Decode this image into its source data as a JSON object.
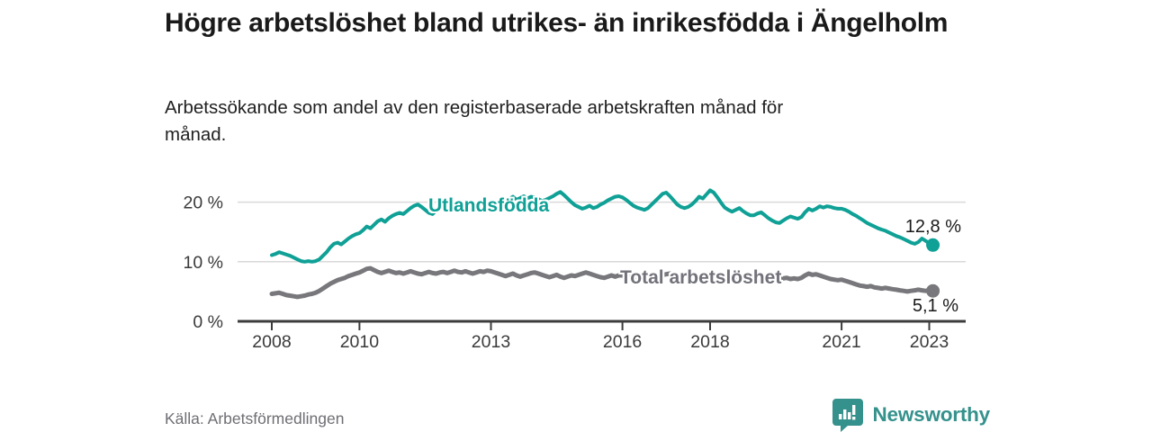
{
  "header": {
    "title": "Högre arbetslöshet bland utrikes- än inrikesfödda i Ängelholm",
    "subtitle": "Arbetssökande som andel av den registerbaserade arbetskraften månad för månad."
  },
  "footer": {
    "source": "Källa: Arbetsförmedlingen",
    "brand": "Newsworthy"
  },
  "colors": {
    "accent_teal": "#0fa096",
    "line_gray": "#78787c",
    "grid": "#d9d9d9",
    "axis": "#3c3c3c",
    "text_dark": "#1a1a1a",
    "brand_teal": "#35918c"
  },
  "chart_data": {
    "type": "line",
    "title": "Högre arbetslöshet bland utrikes- än inrikesfödda i Ängelholm",
    "subtitle": "Arbetssökande som andel av den registerbaserade arbetskraften månad för månad.",
    "x_start_year": 2008,
    "x_end_label_year": 2023,
    "x_step_months": 1,
    "ylim": [
      0,
      23
    ],
    "grid": "horizontal",
    "legend_position": "inline-labels",
    "yticks": [
      {
        "value": 0,
        "label": "0 %"
      },
      {
        "value": 10,
        "label": "10 %"
      },
      {
        "value": 20,
        "label": "20 %"
      }
    ],
    "xticks": [
      {
        "year": 2008,
        "label": "2008"
      },
      {
        "year": 2010,
        "label": "2010"
      },
      {
        "year": 2013,
        "label": "2013"
      },
      {
        "year": 2016,
        "label": "2016"
      },
      {
        "year": 2018,
        "label": "2018"
      },
      {
        "year": 2021,
        "label": "2021"
      },
      {
        "year": 2023,
        "label": "2023"
      }
    ],
    "series": [
      {
        "name": "Utlandsfödda",
        "color": "#0fa096",
        "stroke_width": 4,
        "end_label": "12,8 %",
        "end_value": 12.8,
        "values": [
          11.1,
          11.3,
          11.6,
          11.4,
          11.2,
          11.0,
          10.7,
          10.4,
          10.1,
          10.0,
          10.1,
          10.0,
          10.1,
          10.4,
          11.0,
          11.6,
          12.4,
          13.0,
          13.2,
          12.9,
          13.4,
          13.9,
          14.3,
          14.6,
          14.8,
          15.3,
          15.9,
          15.6,
          16.2,
          16.8,
          17.1,
          16.7,
          17.3,
          17.7,
          18.0,
          18.2,
          18.0,
          18.5,
          19.0,
          19.4,
          19.6,
          19.2,
          18.7,
          18.2,
          18.0,
          18.6,
          19.3,
          19.8,
          20.0,
          19.6,
          19.0,
          18.6,
          18.8,
          19.2,
          19.0,
          18.8,
          18.6,
          18.8,
          18.9,
          18.7,
          18.7,
          19.0,
          19.4,
          19.8,
          20.2,
          20.5,
          20.9,
          20.4,
          20.7,
          21.0,
          20.6,
          20.9,
          20.8,
          20.5,
          20.2,
          20.4,
          20.7,
          21.0,
          21.4,
          21.7,
          21.2,
          20.6,
          20.0,
          19.5,
          19.2,
          18.9,
          19.1,
          19.4,
          19.0,
          19.2,
          19.6,
          19.9,
          20.3,
          20.6,
          20.9,
          21.0,
          20.8,
          20.4,
          19.9,
          19.4,
          19.1,
          18.9,
          18.7,
          19.0,
          19.6,
          20.2,
          20.8,
          21.4,
          21.6,
          21.0,
          20.3,
          19.6,
          19.2,
          19.0,
          19.2,
          19.6,
          20.2,
          20.9,
          20.6,
          21.3,
          22.0,
          21.6,
          20.8,
          19.9,
          19.1,
          18.7,
          18.4,
          18.7,
          19.0,
          18.5,
          18.1,
          17.8,
          17.8,
          18.1,
          18.3,
          17.8,
          17.3,
          16.9,
          16.6,
          16.5,
          16.9,
          17.3,
          17.6,
          17.4,
          17.2,
          17.5,
          18.3,
          18.9,
          18.6,
          18.9,
          19.3,
          19.1,
          19.3,
          19.2,
          19.0,
          18.9,
          18.9,
          18.7,
          18.4,
          18.0,
          17.7,
          17.3,
          16.9,
          16.5,
          16.2,
          15.9,
          15.6,
          15.4,
          15.2,
          14.9,
          14.6,
          14.3,
          14.1,
          13.8,
          13.5,
          13.2,
          13.0,
          13.3,
          13.9,
          13.5,
          13.1,
          12.8
        ]
      },
      {
        "name": "Total arbetslöshet",
        "color": "#78787c",
        "stroke_width": 5,
        "end_label": "5,1 %",
        "end_value": 5.1,
        "values": [
          4.6,
          4.7,
          4.8,
          4.6,
          4.4,
          4.3,
          4.2,
          4.1,
          4.2,
          4.3,
          4.5,
          4.6,
          4.8,
          5.1,
          5.5,
          5.9,
          6.3,
          6.6,
          6.9,
          7.1,
          7.3,
          7.6,
          7.8,
          8.0,
          8.2,
          8.5,
          8.8,
          8.9,
          8.6,
          8.3,
          8.1,
          8.3,
          8.5,
          8.3,
          8.1,
          8.2,
          8.0,
          8.2,
          8.4,
          8.2,
          8.0,
          7.9,
          8.1,
          8.3,
          8.1,
          8.0,
          8.2,
          8.3,
          8.1,
          8.3,
          8.5,
          8.3,
          8.2,
          8.4,
          8.2,
          8.0,
          8.2,
          8.4,
          8.3,
          8.5,
          8.4,
          8.2,
          8.0,
          7.8,
          7.6,
          7.8,
          8.0,
          7.7,
          7.5,
          7.7,
          7.9,
          8.1,
          8.2,
          8.0,
          7.8,
          7.6,
          7.4,
          7.6,
          7.8,
          7.5,
          7.3,
          7.5,
          7.7,
          7.6,
          7.8,
          8.0,
          8.2,
          8.0,
          7.8,
          7.6,
          7.4,
          7.3,
          7.5,
          7.7,
          7.5,
          7.7,
          7.7,
          7.9,
          7.7,
          7.5,
          7.3,
          7.5,
          7.7,
          7.9,
          7.7,
          7.5,
          7.7,
          7.8,
          7.9,
          8.0,
          7.8,
          7.6,
          7.7,
          7.9,
          7.7,
          7.5,
          7.6,
          7.8,
          7.7,
          7.9,
          7.7,
          7.5,
          7.3,
          7.1,
          7.0,
          7.2,
          7.4,
          7.2,
          7.0,
          6.9,
          7.1,
          7.2,
          7.0,
          6.9,
          7.1,
          7.0,
          6.8,
          6.9,
          7.1,
          7.0,
          7.2,
          7.3,
          7.1,
          7.2,
          7.1,
          7.3,
          7.7,
          8.0,
          7.8,
          7.9,
          7.7,
          7.5,
          7.3,
          7.1,
          7.0,
          6.9,
          7.0,
          6.8,
          6.6,
          6.4,
          6.2,
          6.0,
          5.9,
          5.8,
          5.9,
          5.7,
          5.6,
          5.5,
          5.6,
          5.5,
          5.4,
          5.3,
          5.2,
          5.1,
          5.0,
          5.1,
          5.2,
          5.3,
          5.2,
          5.1,
          5.2,
          5.1
        ]
      }
    ],
    "source": "Källa: Arbetsförmedlingen"
  }
}
